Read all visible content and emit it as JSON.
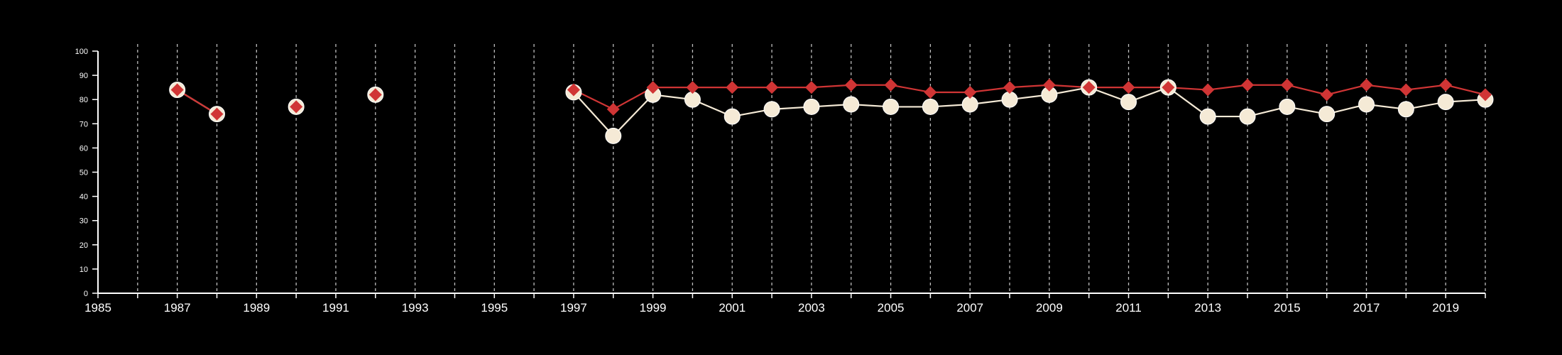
{
  "chart_data": {
    "type": "line",
    "title": "",
    "xlabel": "",
    "ylabel": "",
    "xlim": [
      1985,
      2020
    ],
    "ylim": [
      0,
      100
    ],
    "x_tick_labels": [
      "1985",
      "1987",
      "1989",
      "1991",
      "1993",
      "1995",
      "1997",
      "1999",
      "2001",
      "2003",
      "2005",
      "2007",
      "2009",
      "2011",
      "2013",
      "2015",
      "2017",
      "2019"
    ],
    "y_tick_labels": [
      "0",
      "10",
      "20",
      "30",
      "40",
      "50",
      "60",
      "70",
      "80",
      "90",
      "100"
    ],
    "vertical_grid": "dashed, every year",
    "legend": "none",
    "series": [
      {
        "color": "#f5ead6",
        "marker": "circle",
        "points": [
          [
            1987,
            84
          ],
          [
            1988,
            74
          ],
          [
            1990,
            77
          ],
          [
            1992,
            82
          ],
          [
            1997,
            83
          ],
          [
            1998,
            65
          ],
          [
            1999,
            82
          ],
          [
            2000,
            80
          ],
          [
            2001,
            73
          ],
          [
            2002,
            76
          ],
          [
            2003,
            77
          ],
          [
            2004,
            78
          ],
          [
            2005,
            77
          ],
          [
            2006,
            77
          ],
          [
            2007,
            78
          ],
          [
            2008,
            80
          ],
          [
            2009,
            82
          ],
          [
            2010,
            85
          ],
          [
            2011,
            79
          ],
          [
            2012,
            85
          ],
          [
            2013,
            73
          ],
          [
            2014,
            73
          ],
          [
            2015,
            77
          ],
          [
            2016,
            74
          ],
          [
            2017,
            78
          ],
          [
            2018,
            76
          ],
          [
            2019,
            79
          ],
          [
            2020,
            80
          ]
        ]
      },
      {
        "color": "#d03535",
        "marker": "diamond",
        "points": [
          [
            1987,
            84
          ],
          [
            1988,
            74
          ],
          [
            1990,
            77
          ],
          [
            1992,
            82
          ],
          [
            1997,
            84
          ],
          [
            1998,
            76
          ],
          [
            1999,
            85
          ],
          [
            2000,
            85
          ],
          [
            2001,
            85
          ],
          [
            2002,
            85
          ],
          [
            2003,
            85
          ],
          [
            2004,
            86
          ],
          [
            2005,
            86
          ],
          [
            2006,
            83
          ],
          [
            2007,
            83
          ],
          [
            2008,
            85
          ],
          [
            2009,
            86
          ],
          [
            2010,
            85
          ],
          [
            2011,
            85
          ],
          [
            2012,
            85
          ],
          [
            2013,
            84
          ],
          [
            2014,
            86
          ],
          [
            2015,
            86
          ],
          [
            2016,
            82
          ],
          [
            2017,
            86
          ],
          [
            2018,
            84
          ],
          [
            2019,
            86
          ],
          [
            2020,
            82
          ]
        ]
      }
    ]
  }
}
